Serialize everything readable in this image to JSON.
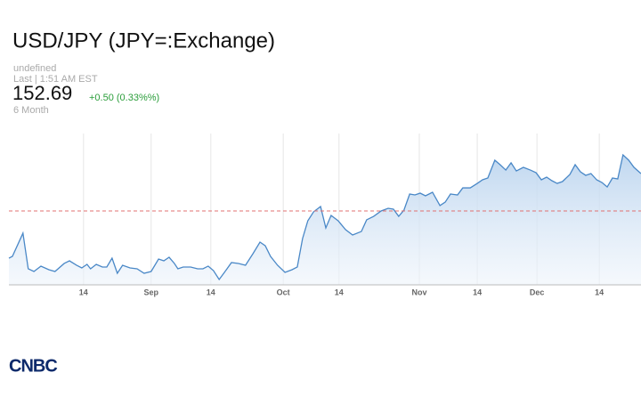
{
  "header": {
    "title": "USD/JPY (JPY=:Exchange)",
    "source": "undefined",
    "status": "Last | 1:51 AM EST",
    "price": 152.69,
    "change": "+0.50 (0.33%%)",
    "range": "6 Month"
  },
  "chart_data": {
    "type": "area",
    "x": [
      -1.4,
      -0.6,
      1.8,
      3.0,
      4.3,
      5.9,
      7.7,
      9.1,
      11.2,
      12.4,
      14.0,
      15.2,
      16.4,
      17.2,
      18.5,
      19.9,
      20.9,
      22.1,
      23.3,
      24.5,
      26.2,
      27.8,
      29.4,
      31.0,
      32.7,
      33.9,
      35.1,
      36.3,
      37.1,
      38.3,
      40.0,
      41.6,
      42.8,
      44.0,
      45.2,
      46.5,
      47.7,
      49.3,
      50.9,
      52.5,
      54.2,
      55.8,
      57.0,
      58.2,
      59.8,
      61.5,
      63.1,
      64.3,
      65.5,
      66.7,
      68.0,
      69.6,
      70.8,
      72.0,
      73.6,
      75.3,
      76.9,
      78.9,
      80.1,
      81.7,
      83.4,
      85.0,
      86.2,
      87.4,
      88.6,
      89.9,
      91.1,
      92.3,
      93.5,
      95.1,
      96.8,
      98.0,
      99.2,
      100.8,
      102.0,
      103.7,
      105.3,
      106.5,
      107.7,
      109.3,
      110.5,
      111.8,
      113.0,
      114.2,
      115.8,
      117.4,
      118.7,
      119.9,
      121.1,
      122.3,
      123.5,
      124.7,
      126.4,
      127.6,
      128.8,
      130.0,
      131.2,
      132.5,
      133.7,
      134.9,
      136.1,
      137.3,
      138.5,
      139.8,
      141.0,
      142.6
    ],
    "values": [
      142.28,
      142.5,
      145.35,
      140.97,
      140.64,
      141.3,
      140.86,
      140.64,
      141.63,
      141.95,
      141.41,
      141.08,
      141.52,
      140.97,
      141.52,
      141.19,
      141.19,
      142.28,
      140.42,
      141.41,
      141.08,
      140.97,
      140.42,
      140.64,
      142.17,
      141.95,
      142.39,
      141.63,
      140.97,
      141.19,
      141.19,
      140.97,
      140.97,
      141.3,
      140.75,
      139.66,
      140.53,
      141.74,
      141.63,
      141.41,
      142.83,
      144.25,
      143.81,
      142.5,
      141.41,
      140.53,
      140.86,
      141.19,
      144.69,
      146.88,
      147.97,
      148.63,
      146.0,
      147.53,
      146.88,
      145.78,
      145.13,
      145.56,
      146.99,
      147.42,
      148.08,
      148.41,
      148.3,
      147.42,
      148.19,
      150.16,
      150.05,
      150.27,
      149.94,
      150.38,
      148.74,
      149.17,
      150.16,
      150.05,
      150.92,
      150.92,
      151.47,
      151.91,
      152.13,
      154.32,
      153.77,
      153.11,
      154.0,
      153.0,
      153.44,
      153.11,
      152.78,
      151.91,
      152.24,
      151.8,
      151.47,
      151.69,
      152.57,
      153.77,
      152.89,
      152.46,
      152.68,
      151.91,
      151.58,
      151.03,
      152.13,
      152.02,
      154.97,
      154.32,
      153.44,
      152.68
    ],
    "color": "#4a88c7",
    "reference_line": 148.08,
    "reference_color": "#e07070",
    "xlim": [
      -1.4,
      142.6
    ],
    "ylim": [
      139,
      157.6
    ],
    "xticks": [
      {
        "value": 15.6,
        "label": "14"
      },
      {
        "value": 31.0,
        "label": "Sep"
      },
      {
        "value": 44.6,
        "label": "14"
      },
      {
        "value": 61.1,
        "label": "Oct"
      },
      {
        "value": 73.8,
        "label": "14"
      },
      {
        "value": 92.1,
        "label": "Nov"
      },
      {
        "value": 105.3,
        "label": "14"
      },
      {
        "value": 118.9,
        "label": "Dec"
      },
      {
        "value": 133.1,
        "label": "14"
      }
    ],
    "grid": true
  },
  "footer": {
    "logo": "CNBC"
  }
}
